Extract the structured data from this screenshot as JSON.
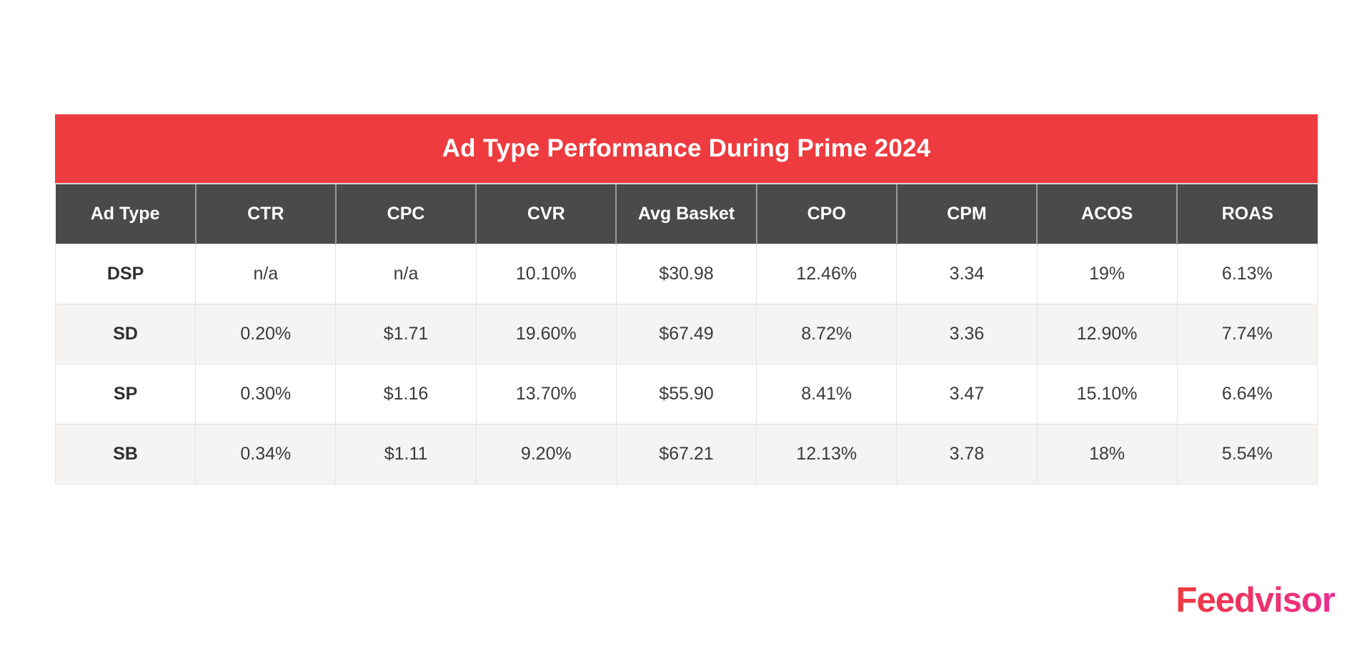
{
  "chart_data": {
    "type": "table",
    "title": "Ad Type Performance During Prime 2024",
    "columns": [
      "Ad Type",
      "CTR",
      "CPC",
      "CVR",
      "Avg Basket",
      "CPO",
      "CPM",
      "ACOS",
      "ROAS"
    ],
    "rows": [
      [
        "DSP",
        "n/a",
        "n/a",
        "10.10%",
        "$30.98",
        "12.46%",
        "3.34",
        "19%",
        "6.13%"
      ],
      [
        "SD",
        "0.20%",
        "$1.71",
        "19.60%",
        "$67.49",
        "8.72%",
        "3.36",
        "12.90%",
        "7.74%"
      ],
      [
        "SP",
        "0.30%",
        "$1.16",
        "13.70%",
        "$55.90",
        "8.41%",
        "3.47",
        "15.10%",
        "6.64%"
      ],
      [
        "SB",
        "0.34%",
        "$1.11",
        "9.20%",
        "$67.21",
        "12.13%",
        "3.78",
        "18%",
        "5.54%"
      ]
    ],
    "layout_hints": {
      "header_background": "#4A4A4A",
      "title_banner_background": "#EE3B3F",
      "zebra_striping": true,
      "alt_row_background": "#F5F4F3"
    }
  },
  "branding": {
    "logo_text": "Feedvisor"
  },
  "colors": {
    "banner_red": "#EE3B3F",
    "header_gray": "#4A4A4A",
    "row_alt": "#F5F4F3",
    "text_dark": "#3B3B3B",
    "logo_gradient_from": "#F0383D",
    "logo_gradient_to": "#EC2E92"
  }
}
